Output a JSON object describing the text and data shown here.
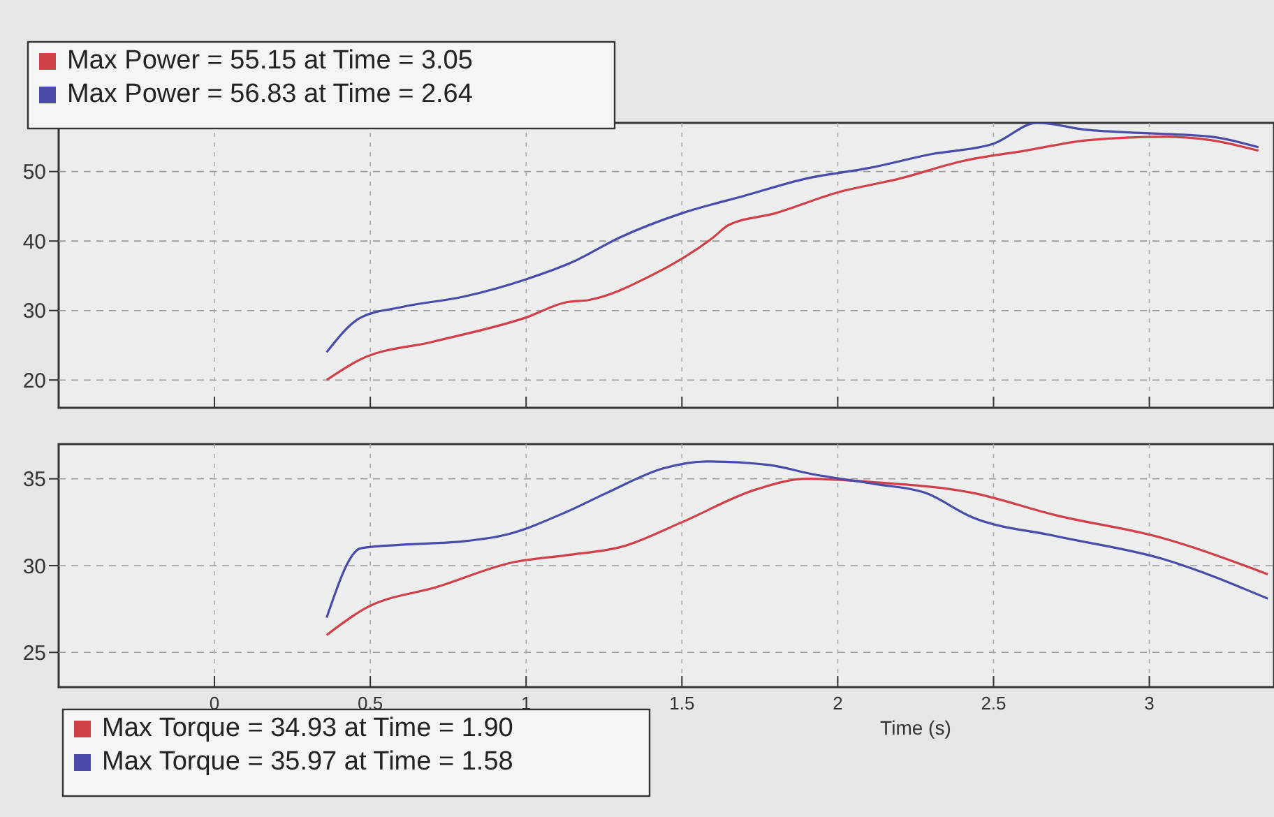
{
  "chart_data": [
    {
      "type": "line",
      "xlim": [
        -0.5,
        3.4
      ],
      "xticks": [
        0,
        0.5,
        1.0,
        1.5,
        2.0,
        2.5,
        3.0
      ],
      "ylim": [
        16,
        57
      ],
      "yticks": [
        20,
        30,
        40,
        50
      ],
      "grid": true,
      "line_style": "solid",
      "tick_labels": "y",
      "annotations": [
        "Max Power = 55.15 at Time = 3.05",
        "Max Power = 56.83 at Time = 2.64"
      ],
      "series": [
        {
          "color": "#d04048",
          "x": [
            0.36,
            0.47,
            0.7,
            1.0,
            1.13,
            1.2,
            1.4,
            1.6,
            1.65,
            1.8,
            2.0,
            2.2,
            2.4,
            2.6,
            2.8,
            3.05,
            3.2,
            3.35
          ],
          "values": [
            20,
            23,
            25.5,
            29,
            31.2,
            31.5,
            35,
            40.5,
            42.3,
            44,
            47,
            49,
            51.5,
            53,
            54.5,
            55,
            54.5,
            53
          ]
        },
        {
          "color": "#4a4aa8",
          "x": [
            0.36,
            0.47,
            0.6,
            0.8,
            1.0,
            1.15,
            1.3,
            1.5,
            1.7,
            1.9,
            2.1,
            2.3,
            2.5,
            2.64,
            2.8,
            3.0,
            3.2,
            3.35
          ],
          "values": [
            24,
            29,
            30.5,
            32,
            34.5,
            37,
            40.5,
            44,
            46.5,
            49,
            50.5,
            52.5,
            54,
            57,
            56,
            55.5,
            55,
            53.5
          ]
        }
      ]
    },
    {
      "type": "line",
      "xlim": [
        -0.5,
        3.4
      ],
      "xticks": [
        0,
        0.5,
        1.0,
        1.5,
        2.0,
        2.5,
        3.0
      ],
      "ylim": [
        23,
        37
      ],
      "yticks": [
        25,
        30,
        35
      ],
      "grid": true,
      "line_style": "solid",
      "xlabel": "Time (s)",
      "annotations": [
        "Max Torque = 34.93 at Time = 1.90",
        "Max Torque = 35.97 at Time = 1.58"
      ],
      "series": [
        {
          "color": "#d04048",
          "x": [
            0.36,
            0.48,
            0.72,
            0.96,
            1.13,
            1.31,
            1.5,
            1.74,
            1.9,
            2.12,
            2.43,
            2.7,
            3.04,
            3.38
          ],
          "values": [
            26.0,
            27.5,
            28.8,
            30.2,
            30.6,
            31.1,
            32.5,
            34.4,
            35,
            34.8,
            34.2,
            32.9,
            31.6,
            29.5
          ]
        },
        {
          "color": "#4a4aa8",
          "x": [
            0.36,
            0.47,
            0.6,
            0.8,
            0.94,
            1.13,
            1.26,
            1.44,
            1.58,
            1.78,
            1.91,
            2.12,
            2.28,
            2.43,
            2.7,
            3.04,
            3.38
          ],
          "values": [
            27,
            31,
            31.2,
            31.4,
            31.8,
            33.1,
            34.2,
            35.6,
            36,
            35.8,
            35.3,
            34.7,
            34.2,
            32.8,
            31.7,
            30.4,
            28.1
          ]
        }
      ]
    }
  ]
}
